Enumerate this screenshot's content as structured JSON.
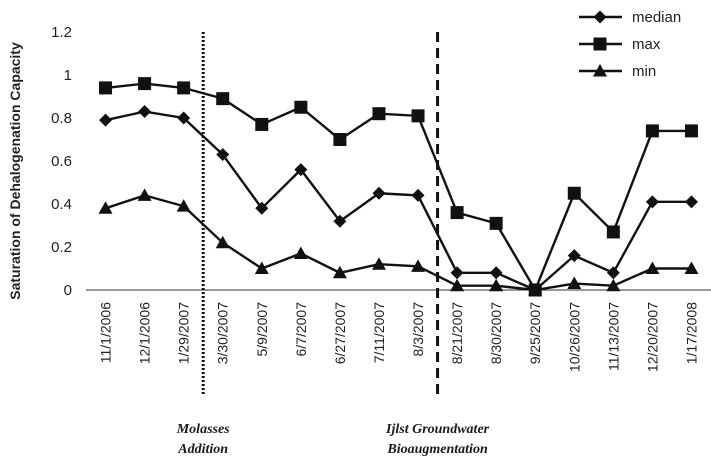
{
  "chart_data": {
    "type": "line",
    "title": "",
    "xlabel": "",
    "ylabel": "Saturation of Dehalogenation Capacity",
    "ylim": [
      0,
      1.2
    ],
    "yticks": [
      "0",
      "0.2",
      "0.4",
      "0.6",
      "0.8",
      "1",
      "1.2"
    ],
    "categories": [
      "11/1/2006",
      "12/1/2006",
      "1/29/2007",
      "3/30/2007",
      "5/9/2007",
      "6/7/2007",
      "6/27/2007",
      "7/11/2007",
      "8/3/2007",
      "8/21/2007",
      "8/30/2007",
      "9/25/2007",
      "10/26/2007",
      "11/13/2007",
      "12/20/2007",
      "1/17/2008"
    ],
    "series": [
      {
        "name": "median",
        "marker": "diamond",
        "values": [
          0.79,
          0.83,
          0.8,
          0.63,
          0.38,
          0.56,
          0.32,
          0.45,
          0.44,
          0.08,
          0.08,
          0.0,
          0.16,
          0.08,
          0.41,
          0.41
        ]
      },
      {
        "name": "max",
        "marker": "square",
        "values": [
          0.94,
          0.96,
          0.94,
          0.89,
          0.77,
          0.85,
          0.7,
          0.82,
          0.81,
          0.36,
          0.31,
          0.0,
          0.45,
          0.27,
          0.74,
          0.74
        ]
      },
      {
        "name": "min",
        "marker": "triangle",
        "values": [
          0.38,
          0.44,
          0.39,
          0.22,
          0.1,
          0.17,
          0.08,
          0.12,
          0.11,
          0.02,
          0.02,
          0.0,
          0.03,
          0.02,
          0.1,
          0.1
        ]
      }
    ],
    "legend_position": "top-right",
    "grid": false,
    "annotations": [
      {
        "line_style": "dotted",
        "after_category": "1/29/2007",
        "text_line1": "Molasses",
        "text_line2": "Addition"
      },
      {
        "line_style": "dashed",
        "after_category": "8/3/2007",
        "text_line1": "Ijlst Groundwater",
        "text_line2": "Bioaugmentation"
      }
    ]
  }
}
